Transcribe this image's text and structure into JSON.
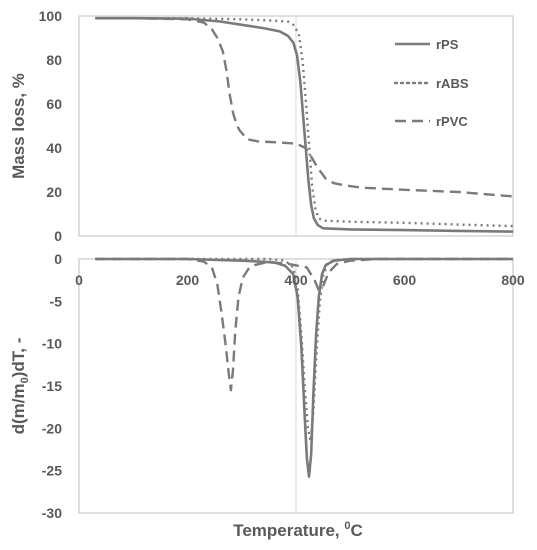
{
  "chart_data": [
    {
      "type": "line",
      "name": "top",
      "ylabel": "Mass loss, %",
      "xlim": [
        0,
        800
      ],
      "ylim": [
        0,
        100
      ],
      "yticks": [
        0,
        20,
        40,
        60,
        80,
        100
      ],
      "grid": "vertical at 400",
      "legend": "top-right",
      "series": [
        {
          "name": "rPS",
          "style": "solid",
          "color": "#7a7a7a",
          "points": [
            [
              30,
              99
            ],
            [
              100,
              99
            ],
            [
              200,
              98.8
            ],
            [
              260,
              97.5
            ],
            [
              300,
              96
            ],
            [
              340,
              94.5
            ],
            [
              370,
              93
            ],
            [
              385,
              91
            ],
            [
              395,
              88
            ],
            [
              402,
              82
            ],
            [
              408,
              70
            ],
            [
              413,
              55
            ],
            [
              418,
              40
            ],
            [
              423,
              25
            ],
            [
              428,
              14
            ],
            [
              433,
              8
            ],
            [
              440,
              5
            ],
            [
              450,
              3.5
            ],
            [
              500,
              3
            ],
            [
              600,
              2.7
            ],
            [
              700,
              2.3
            ],
            [
              800,
              2
            ]
          ]
        },
        {
          "name": "rABS",
          "style": "dotted",
          "color": "#7a7a7a",
          "points": [
            [
              30,
              99
            ],
            [
              100,
              99
            ],
            [
              200,
              99
            ],
            [
              300,
              98.5
            ],
            [
              350,
              98
            ],
            [
              385,
              97.5
            ],
            [
              395,
              96
            ],
            [
              405,
              92
            ],
            [
              412,
              80
            ],
            [
              418,
              62
            ],
            [
              424,
              42
            ],
            [
              430,
              22
            ],
            [
              436,
              12
            ],
            [
              442,
              8
            ],
            [
              450,
              7
            ],
            [
              500,
              6.5
            ],
            [
              600,
              6
            ],
            [
              700,
              5.2
            ],
            [
              800,
              4.5
            ]
          ]
        },
        {
          "name": "rPVC",
          "style": "dashed",
          "color": "#7a7a7a",
          "points": [
            [
              30,
              99
            ],
            [
              100,
              99
            ],
            [
              200,
              98.5
            ],
            [
              230,
              97
            ],
            [
              245,
              94
            ],
            [
              255,
              90
            ],
            [
              265,
              84
            ],
            [
              272,
              75
            ],
            [
              278,
              64
            ],
            [
              284,
              56
            ],
            [
              290,
              51
            ],
            [
              296,
              48
            ],
            [
              303,
              46
            ],
            [
              310,
              44
            ],
            [
              330,
              43
            ],
            [
              370,
              42.5
            ],
            [
              400,
              42
            ],
            [
              418,
              40
            ],
            [
              428,
              36
            ],
            [
              440,
              31
            ],
            [
              455,
              26
            ],
            [
              470,
              24
            ],
            [
              490,
              23
            ],
            [
              520,
              22
            ],
            [
              600,
              21
            ],
            [
              700,
              20
            ],
            [
              800,
              18
            ]
          ]
        }
      ]
    },
    {
      "type": "line",
      "name": "bottom",
      "xlabel": "Temperature, ",
      "xlabel_sup": "0",
      "xlabel_unit": "C",
      "ylabel_parts": [
        "d(m/m",
        "0",
        ")dT, -"
      ],
      "xlim": [
        0,
        800
      ],
      "ylim": [
        -30,
        0
      ],
      "xticks": [
        0,
        200,
        400,
        600,
        800
      ],
      "yticks": [
        0,
        -5,
        -10,
        -15,
        -20,
        -25,
        -30
      ],
      "grid": "vertical at 400",
      "series": [
        {
          "name": "rPS",
          "style": "solid",
          "color": "#7a7a7a",
          "points": [
            [
              30,
              0
            ],
            [
              100,
              0
            ],
            [
              200,
              0
            ],
            [
              300,
              -0.2
            ],
            [
              360,
              -0.4
            ],
            [
              380,
              -0.8
            ],
            [
              395,
              -1.8
            ],
            [
              403,
              -4.5
            ],
            [
              410,
              -10.5
            ],
            [
              416,
              -18.5
            ],
            [
              420,
              -23.5
            ],
            [
              424,
              -25.7
            ],
            [
              428,
              -23
            ],
            [
              432,
              -16
            ],
            [
              437,
              -9
            ],
            [
              442,
              -4.5
            ],
            [
              448,
              -1.8
            ],
            [
              455,
              -0.7
            ],
            [
              470,
              -0.2
            ],
            [
              500,
              0
            ],
            [
              600,
              0
            ],
            [
              800,
              0
            ]
          ]
        },
        {
          "name": "rABS",
          "style": "dotted",
          "color": "#7a7a7a",
          "points": [
            [
              30,
              0
            ],
            [
              200,
              0
            ],
            [
              350,
              0
            ],
            [
              380,
              -0.2
            ],
            [
              395,
              -1
            ],
            [
              403,
              -3.5
            ],
            [
              410,
              -9
            ],
            [
              416,
              -15
            ],
            [
              422,
              -20
            ],
            [
              427,
              -21.5
            ],
            [
              432,
              -18
            ],
            [
              438,
              -11
            ],
            [
              444,
              -5
            ],
            [
              450,
              -2
            ],
            [
              458,
              -0.6
            ],
            [
              470,
              -0.1
            ],
            [
              500,
              0
            ],
            [
              800,
              0
            ]
          ]
        },
        {
          "name": "rPVC",
          "style": "dashed",
          "color": "#7a7a7a",
          "points": [
            [
              30,
              0
            ],
            [
              100,
              0
            ],
            [
              200,
              0
            ],
            [
              230,
              -0.3
            ],
            [
              245,
              -1
            ],
            [
              255,
              -3
            ],
            [
              263,
              -6.5
            ],
            [
              270,
              -10
            ],
            [
              276,
              -13.5
            ],
            [
              280,
              -15.5
            ],
            [
              284,
              -13
            ],
            [
              288,
              -8.5
            ],
            [
              294,
              -4.5
            ],
            [
              302,
              -2.2
            ],
            [
              312,
              -1.2
            ],
            [
              325,
              -0.7
            ],
            [
              345,
              -0.4
            ],
            [
              380,
              -0.5
            ],
            [
              420,
              -1
            ],
            [
              435,
              -2.6
            ],
            [
              442,
              -3.7
            ],
            [
              450,
              -3.2
            ],
            [
              460,
              -1.6
            ],
            [
              475,
              -0.6
            ],
            [
              500,
              -0.2
            ],
            [
              550,
              0
            ],
            [
              800,
              0
            ]
          ]
        }
      ]
    }
  ]
}
